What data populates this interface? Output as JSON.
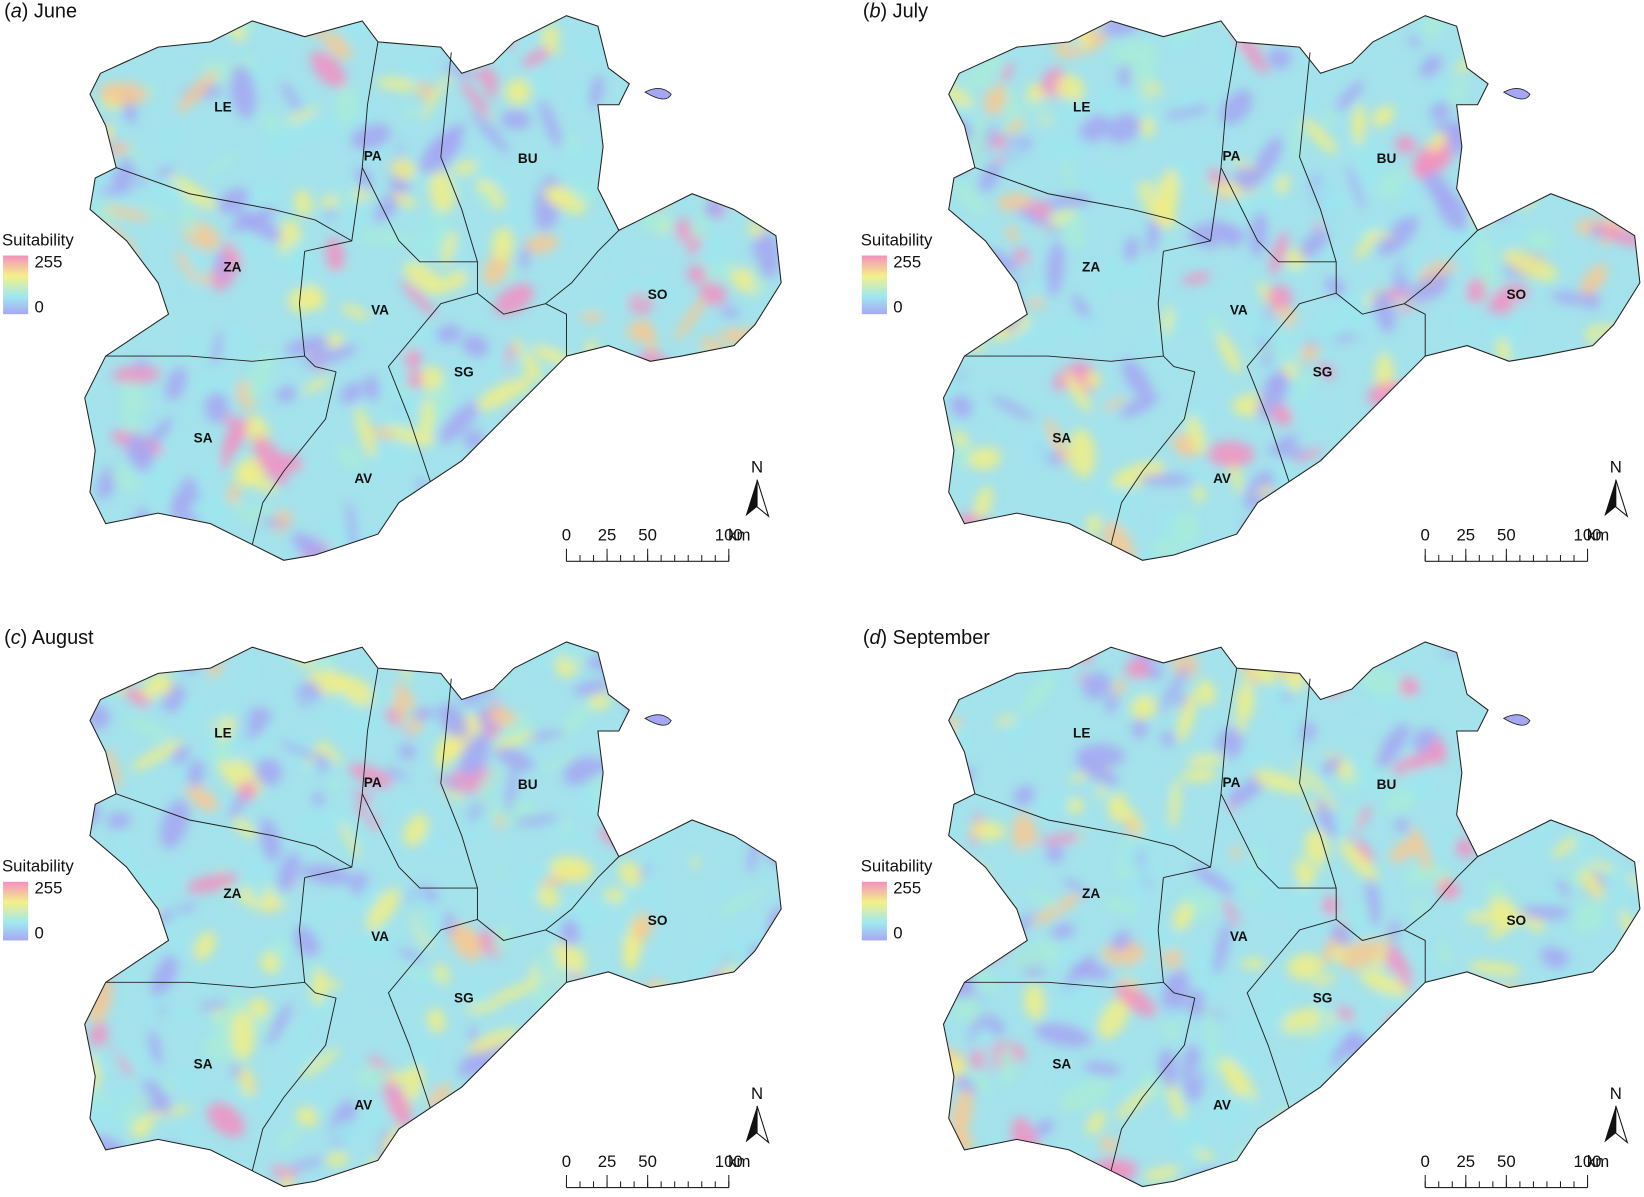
{
  "panels": [
    {
      "title": [
        "(",
        "a",
        ") June"
      ]
    },
    {
      "title": [
        "(",
        "b",
        ") July"
      ]
    },
    {
      "title": [
        "(",
        "c",
        ") August"
      ]
    },
    {
      "title": [
        "(",
        "d",
        ") September"
      ]
    }
  ],
  "regions": [
    "LE",
    "PA",
    "BU",
    "ZA",
    "VA",
    "SO",
    "SA",
    "SG",
    "AV"
  ],
  "legend": {
    "title": "Suitability",
    "max": 255,
    "min": 0
  },
  "north": "N",
  "scale_bar": {
    "ticks": [
      0,
      25,
      50,
      100
    ],
    "unit": "km"
  }
}
